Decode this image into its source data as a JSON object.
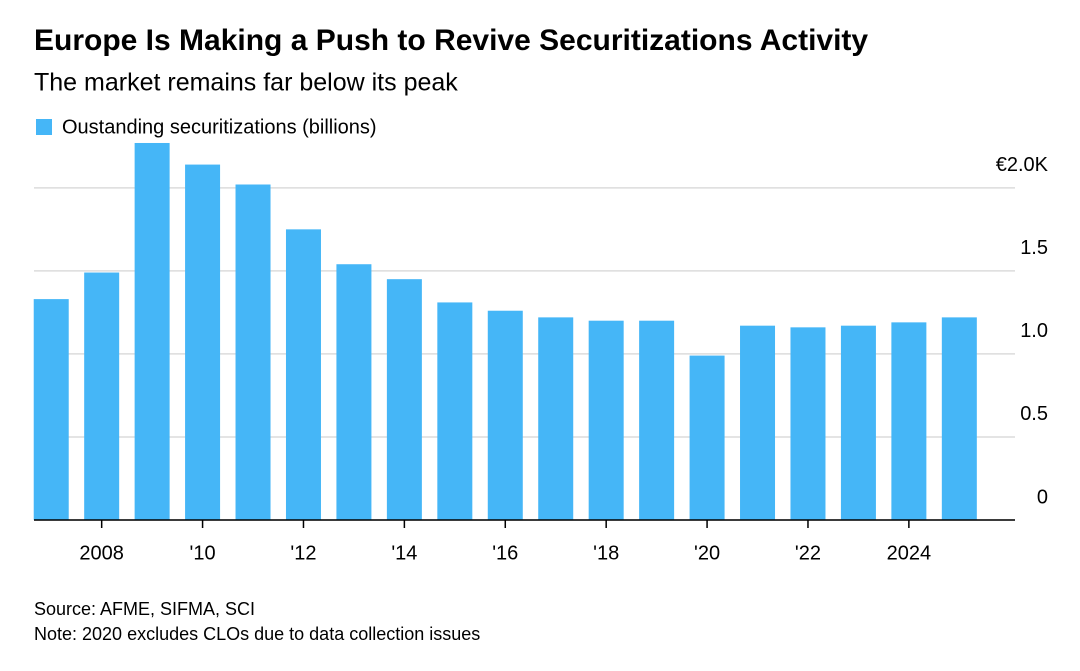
{
  "chart_data": {
    "type": "bar",
    "title": "Europe Is Making a Push to Revive Securitizations Activity",
    "subtitle": "The market remains far below its peak",
    "series": [
      {
        "name": "Oustanding securitizations (billions)",
        "color": "#45b6f7",
        "values": [
          1.33,
          1.49,
          2.27,
          2.14,
          2.02,
          1.75,
          1.54,
          1.45,
          1.31,
          1.26,
          1.22,
          1.2,
          1.2,
          0.99,
          1.17,
          1.16,
          1.17,
          1.19,
          1.22
        ]
      }
    ],
    "categories": [
      null,
      "2008",
      null,
      "'10",
      null,
      "'12",
      null,
      "'14",
      null,
      "'16",
      null,
      "'18",
      null,
      "'20",
      null,
      "'22",
      null,
      "2024",
      null
    ],
    "ylim": [
      0,
      2.3
    ],
    "yticks": [
      0,
      0.5,
      {
        "value": 1,
        "label": "1.0"
      },
      1.5,
      {
        "value": 2,
        "label": "€2.0K"
      }
    ],
    "grid": true,
    "source": "Source: AFME, SIFMA, SCI",
    "note": "Note: 2020 excludes CLOs due to data collection issues"
  }
}
